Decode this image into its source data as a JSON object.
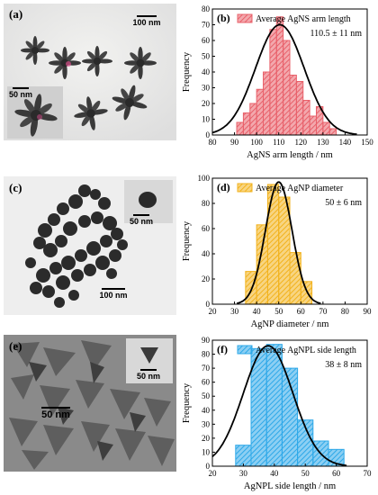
{
  "panels": {
    "a": {
      "label": "(a)",
      "scale_main": "100 nm",
      "scale_inset": "50 nm"
    },
    "c": {
      "label": "(c)",
      "scale_main": "100 nm",
      "scale_inset": "50 nm"
    },
    "e": {
      "label": "(e)",
      "scale_main": "50 nm",
      "scale_inset": "50 nm"
    }
  },
  "chart_data": [
    {
      "panel_label": "(b)",
      "type": "bar",
      "legend": "Average AgNS arm length",
      "annotation": "110.5 ± 11 nm",
      "xlabel": "AgNS arm length / nm",
      "ylabel": "Frequency",
      "xlim": [
        80,
        150
      ],
      "ylim": [
        0,
        80
      ],
      "xticks": [
        80,
        90,
        100,
        110,
        120,
        130,
        140,
        150
      ],
      "yticks": [
        0,
        10,
        20,
        30,
        40,
        50,
        60,
        70,
        80
      ],
      "bin_width": 3,
      "bin_starts": [
        91,
        94,
        97,
        100,
        103,
        106,
        109,
        112,
        115,
        118,
        121,
        124,
        127,
        130,
        133
      ],
      "values": [
        8,
        14,
        20,
        29,
        40,
        67,
        75,
        60,
        38,
        34,
        22,
        12,
        18,
        8,
        4
      ],
      "fit": {
        "type": "gaussian",
        "mean": 110.5,
        "sd": 11,
        "peak": 70
      },
      "bar_color": "#e8606a",
      "line_color": "#000000"
    },
    {
      "panel_label": "(d)",
      "type": "bar",
      "legend": "Average AgNP diameter",
      "annotation": "50 ± 6 nm",
      "xlabel": "AgNP diameter / nm",
      "ylabel": "Frequency",
      "xlim": [
        20,
        90
      ],
      "ylim": [
        0,
        100
      ],
      "xticks": [
        20,
        30,
        40,
        50,
        60,
        70,
        80,
        90
      ],
      "yticks": [
        0,
        20,
        40,
        60,
        80,
        100
      ],
      "bin_width": 5,
      "bin_starts": [
        35,
        40,
        45,
        50,
        55,
        60
      ],
      "values": [
        26,
        63,
        95,
        85,
        41,
        18
      ],
      "fit": {
        "type": "gaussian",
        "mean": 50,
        "sd": 6,
        "peak": 97
      },
      "bar_color": "#f2b21c",
      "line_color": "#000000"
    },
    {
      "panel_label": "(f)",
      "type": "bar",
      "legend": "Average AgNPL side length",
      "annotation": "38 ± 8 nm",
      "xlabel": "AgNPL side length / nm",
      "ylabel": "Frequency",
      "xlim": [
        20,
        70
      ],
      "ylim": [
        0,
        90
      ],
      "xticks": [
        20,
        30,
        40,
        50,
        60,
        70
      ],
      "yticks": [
        0,
        10,
        20,
        30,
        40,
        50,
        60,
        70,
        80,
        90
      ],
      "bin_width": 5,
      "bin_starts": [
        27.5,
        32.5,
        37.5,
        42.5,
        47.5,
        52.5,
        57.5
      ],
      "values": [
        15,
        84,
        87,
        70,
        33,
        18,
        12
      ],
      "fit": {
        "type": "gaussian",
        "mean": 38,
        "sd": 8,
        "peak": 86
      },
      "bar_color": "#2da8e8",
      "line_color": "#000000"
    }
  ]
}
